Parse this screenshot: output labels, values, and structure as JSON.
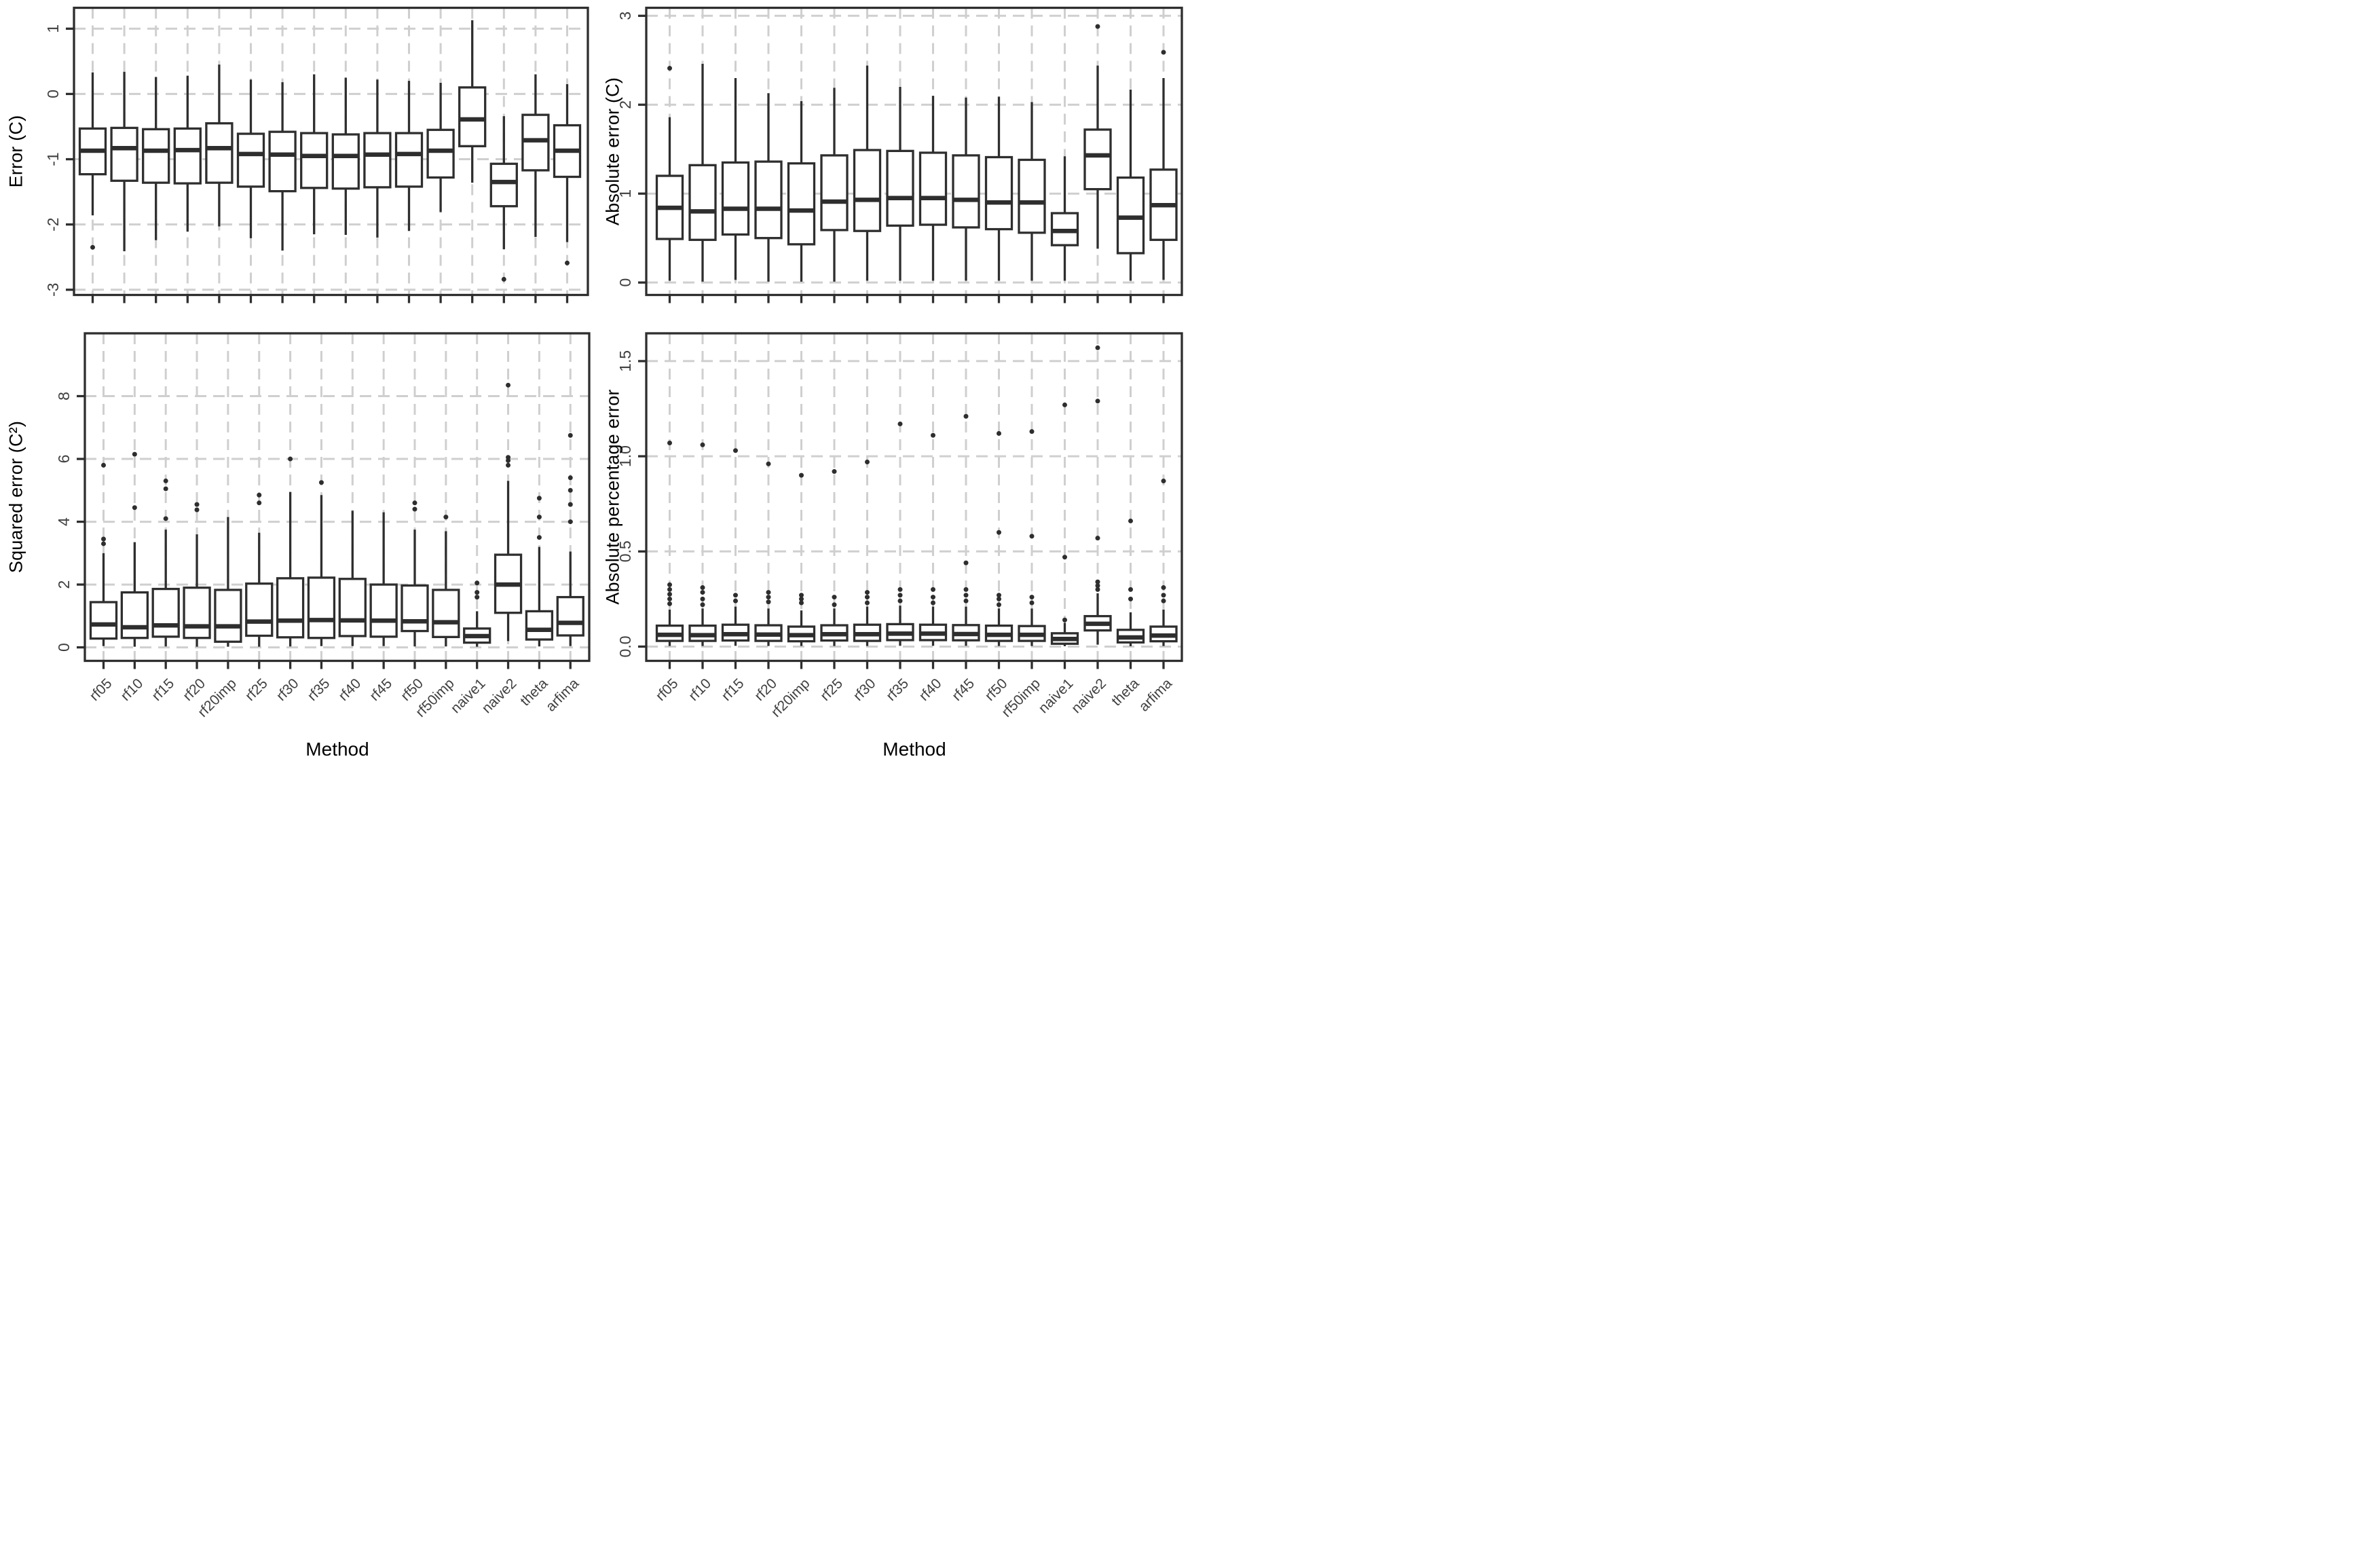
{
  "figure": {
    "background": "#ffffff",
    "panel_border_color": "#2e2e2e",
    "box_line_color": "#2e2e2e",
    "grid_color": "#cfcfcf",
    "tick_label_color": "#404040",
    "axis_title_color": "#000000"
  },
  "box_format": "each box: lo=lower whisker, q1, md=median, q3, hi=upper whisker, out=outlier values",
  "chart_data": [
    {
      "id": "error",
      "type": "boxplot",
      "title": "",
      "ylabel": "Error (C)",
      "xlabel": "",
      "show_x_labels": false,
      "grid": "dashed",
      "legend": "none",
      "ylim": [
        -3.08,
        1.32
      ],
      "yticks": [
        {
          "v": 1,
          "label": "1"
        },
        {
          "v": 0,
          "label": "0"
        },
        {
          "v": -1,
          "label": "-1"
        },
        {
          "v": -2,
          "label": "-2"
        },
        {
          "v": -3,
          "label": "-3"
        }
      ],
      "categories": [
        "rf05",
        "rf10",
        "rf15",
        "rf20",
        "rf20imp",
        "rf25",
        "rf30",
        "rf35",
        "rf40",
        "rf45",
        "rf50",
        "rf50imp",
        "naive1",
        "naive2",
        "theta",
        "arfima"
      ],
      "boxes": [
        {
          "m": "rf05",
          "lo": -1.86,
          "q1": -1.23,
          "md": -0.87,
          "q3": -0.53,
          "hi": 0.33,
          "out": [
            -2.35
          ]
        },
        {
          "m": "rf10",
          "lo": -2.41,
          "q1": -1.33,
          "md": -0.83,
          "q3": -0.52,
          "hi": 0.34,
          "out": []
        },
        {
          "m": "rf15",
          "lo": -2.24,
          "q1": -1.36,
          "md": -0.87,
          "q3": -0.54,
          "hi": 0.26,
          "out": []
        },
        {
          "m": "rf20",
          "lo": -2.11,
          "q1": -1.37,
          "md": -0.86,
          "q3": -0.53,
          "hi": 0.28,
          "out": []
        },
        {
          "m": "rf20imp",
          "lo": -2.03,
          "q1": -1.36,
          "md": -0.83,
          "q3": -0.45,
          "hi": 0.45,
          "out": []
        },
        {
          "m": "rf25",
          "lo": -2.21,
          "q1": -1.42,
          "md": -0.92,
          "q3": -0.61,
          "hi": 0.22,
          "out": []
        },
        {
          "m": "rf30",
          "lo": -2.4,
          "q1": -1.49,
          "md": -0.93,
          "q3": -0.58,
          "hi": 0.18,
          "out": []
        },
        {
          "m": "rf35",
          "lo": -2.15,
          "q1": -1.44,
          "md": -0.95,
          "q3": -0.6,
          "hi": 0.3,
          "out": []
        },
        {
          "m": "rf40",
          "lo": -2.16,
          "q1": -1.45,
          "md": -0.95,
          "q3": -0.62,
          "hi": 0.25,
          "out": []
        },
        {
          "m": "rf45",
          "lo": -2.2,
          "q1": -1.43,
          "md": -0.93,
          "q3": -0.6,
          "hi": 0.22,
          "out": []
        },
        {
          "m": "rf50",
          "lo": -2.1,
          "q1": -1.42,
          "md": -0.92,
          "q3": -0.6,
          "hi": 0.2,
          "out": []
        },
        {
          "m": "rf50imp",
          "lo": -1.81,
          "q1": -1.28,
          "md": -0.87,
          "q3": -0.55,
          "hi": 0.17,
          "out": []
        },
        {
          "m": "naive1",
          "lo": -1.36,
          "q1": -0.8,
          "md": -0.39,
          "q3": 0.1,
          "hi": 1.13,
          "out": []
        },
        {
          "m": "naive2",
          "lo": -2.38,
          "q1": -1.72,
          "md": -1.35,
          "q3": -1.07,
          "hi": -0.34,
          "out": [
            -2.84
          ]
        },
        {
          "m": "theta",
          "lo": -2.19,
          "q1": -1.17,
          "md": -0.71,
          "q3": -0.32,
          "hi": 0.3,
          "out": []
        },
        {
          "m": "arfima",
          "lo": -2.27,
          "q1": -1.27,
          "md": -0.87,
          "q3": -0.48,
          "hi": 0.15,
          "out": [
            -2.59
          ]
        }
      ]
    },
    {
      "id": "absolute-error",
      "type": "boxplot",
      "title": "",
      "ylabel": "Absolute error (C)",
      "xlabel": "",
      "show_x_labels": false,
      "grid": "dashed",
      "legend": "none",
      "ylim": [
        -0.14,
        3.09
      ],
      "yticks": [
        {
          "v": 3,
          "label": "3"
        },
        {
          "v": 2,
          "label": "2"
        },
        {
          "v": 1,
          "label": "1"
        },
        {
          "v": 0,
          "label": "0"
        }
      ],
      "categories": [
        "rf05",
        "rf10",
        "rf15",
        "rf20",
        "rf20imp",
        "rf25",
        "rf30",
        "rf35",
        "rf40",
        "rf45",
        "rf50",
        "rf50imp",
        "naive1",
        "naive2",
        "theta",
        "arfima"
      ],
      "boxes": [
        {
          "m": "rf05",
          "lo": 0.02,
          "q1": 0.49,
          "md": 0.84,
          "q3": 1.2,
          "hi": 1.86,
          "out": [
            2.41
          ]
        },
        {
          "m": "rf10",
          "lo": 0.01,
          "q1": 0.48,
          "md": 0.8,
          "q3": 1.32,
          "hi": 2.46,
          "out": []
        },
        {
          "m": "rf15",
          "lo": 0.03,
          "q1": 0.54,
          "md": 0.83,
          "q3": 1.35,
          "hi": 2.3,
          "out": []
        },
        {
          "m": "rf20",
          "lo": 0.01,
          "q1": 0.5,
          "md": 0.83,
          "q3": 1.36,
          "hi": 2.13,
          "out": []
        },
        {
          "m": "rf20imp",
          "lo": 0.01,
          "q1": 0.43,
          "md": 0.81,
          "q3": 1.34,
          "hi": 2.04,
          "out": []
        },
        {
          "m": "rf25",
          "lo": 0.01,
          "q1": 0.59,
          "md": 0.91,
          "q3": 1.43,
          "hi": 2.19,
          "out": []
        },
        {
          "m": "rf30",
          "lo": 0.02,
          "q1": 0.58,
          "md": 0.93,
          "q3": 1.49,
          "hi": 2.44,
          "out": []
        },
        {
          "m": "rf35",
          "lo": 0.02,
          "q1": 0.64,
          "md": 0.95,
          "q3": 1.48,
          "hi": 2.2,
          "out": []
        },
        {
          "m": "rf40",
          "lo": 0.02,
          "q1": 0.65,
          "md": 0.95,
          "q3": 1.46,
          "hi": 2.1,
          "out": []
        },
        {
          "m": "rf45",
          "lo": 0.02,
          "q1": 0.62,
          "md": 0.93,
          "q3": 1.43,
          "hi": 2.08,
          "out": []
        },
        {
          "m": "rf50",
          "lo": 0.02,
          "q1": 0.6,
          "md": 0.9,
          "q3": 1.41,
          "hi": 2.09,
          "out": []
        },
        {
          "m": "rf50imp",
          "lo": 0.02,
          "q1": 0.56,
          "md": 0.9,
          "q3": 1.38,
          "hi": 2.03,
          "out": []
        },
        {
          "m": "naive1",
          "lo": 0.02,
          "q1": 0.42,
          "md": 0.58,
          "q3": 0.78,
          "hi": 1.42,
          "out": []
        },
        {
          "m": "naive2",
          "lo": 0.38,
          "q1": 1.05,
          "md": 1.43,
          "q3": 1.72,
          "hi": 2.44,
          "out": [
            2.88
          ]
        },
        {
          "m": "theta",
          "lo": 0.02,
          "q1": 0.33,
          "md": 0.73,
          "q3": 1.18,
          "hi": 2.17,
          "out": []
        },
        {
          "m": "arfima",
          "lo": 0.03,
          "q1": 0.48,
          "md": 0.87,
          "q3": 1.27,
          "hi": 2.3,
          "out": [
            2.59
          ]
        }
      ]
    },
    {
      "id": "squared-error",
      "type": "boxplot",
      "title": "",
      "ylabel": "Squared error (C²)",
      "xlabel": "Method",
      "show_x_labels": true,
      "grid": "dashed",
      "legend": "none",
      "ylim": [
        -0.43,
        10.0
      ],
      "yticks": [
        {
          "v": 8,
          "label": "8"
        },
        {
          "v": 6,
          "label": "6"
        },
        {
          "v": 4,
          "label": "4"
        },
        {
          "v": 2,
          "label": "2"
        },
        {
          "v": 0,
          "label": "0"
        }
      ],
      "categories": [
        "rf05",
        "rf10",
        "rf15",
        "rf20",
        "rf20imp",
        "rf25",
        "rf30",
        "rf35",
        "rf40",
        "rf45",
        "rf50",
        "rf50imp",
        "naive1",
        "naive2",
        "theta",
        "arfima"
      ],
      "boxes": [
        {
          "m": "rf05",
          "lo": 0.04,
          "q1": 0.28,
          "md": 0.73,
          "q3": 1.44,
          "hi": 3.0,
          "out": [
            3.3,
            3.45,
            5.8
          ]
        },
        {
          "m": "rf10",
          "lo": 0.02,
          "q1": 0.3,
          "md": 0.64,
          "q3": 1.75,
          "hi": 3.35,
          "out": [
            4.45,
            6.15
          ]
        },
        {
          "m": "rf15",
          "lo": 0.03,
          "q1": 0.34,
          "md": 0.7,
          "q3": 1.86,
          "hi": 3.75,
          "out": [
            4.1,
            5.05,
            5.3
          ]
        },
        {
          "m": "rf20",
          "lo": 0.02,
          "q1": 0.3,
          "md": 0.67,
          "q3": 1.9,
          "hi": 3.6,
          "out": [
            4.38,
            4.55
          ]
        },
        {
          "m": "rf20imp",
          "lo": 0.02,
          "q1": 0.18,
          "md": 0.67,
          "q3": 1.83,
          "hi": 4.15,
          "out": []
        },
        {
          "m": "rf25",
          "lo": 0.02,
          "q1": 0.37,
          "md": 0.82,
          "q3": 2.03,
          "hi": 3.65,
          "out": [
            4.6,
            4.85
          ]
        },
        {
          "m": "rf30",
          "lo": 0.03,
          "q1": 0.32,
          "md": 0.85,
          "q3": 2.2,
          "hi": 4.95,
          "out": [
            6.0
          ]
        },
        {
          "m": "rf35",
          "lo": 0.04,
          "q1": 0.3,
          "md": 0.87,
          "q3": 2.22,
          "hi": 4.85,
          "out": [
            5.25
          ]
        },
        {
          "m": "rf40",
          "lo": 0.04,
          "q1": 0.36,
          "md": 0.86,
          "q3": 2.18,
          "hi": 4.35,
          "out": []
        },
        {
          "m": "rf45",
          "lo": 0.04,
          "q1": 0.34,
          "md": 0.85,
          "q3": 2.0,
          "hi": 4.3,
          "out": []
        },
        {
          "m": "rf50",
          "lo": 0.03,
          "q1": 0.52,
          "md": 0.83,
          "q3": 1.97,
          "hi": 3.75,
          "out": [
            4.4,
            4.6
          ]
        },
        {
          "m": "rf50imp",
          "lo": 0.03,
          "q1": 0.33,
          "md": 0.8,
          "q3": 1.83,
          "hi": 3.7,
          "out": [
            4.15
          ]
        },
        {
          "m": "naive1",
          "lo": 0.02,
          "q1": 0.15,
          "md": 0.36,
          "q3": 0.6,
          "hi": 1.15,
          "out": [
            1.6,
            1.75,
            2.05
          ]
        },
        {
          "m": "naive2",
          "lo": 0.2,
          "q1": 1.1,
          "md": 2.0,
          "q3": 2.95,
          "hi": 5.3,
          "out": [
            5.8,
            5.95,
            6.05,
            8.35
          ]
        },
        {
          "m": "theta",
          "lo": 0.03,
          "q1": 0.25,
          "md": 0.56,
          "q3": 1.15,
          "hi": 3.2,
          "out": [
            3.5,
            4.15,
            4.75
          ]
        },
        {
          "m": "arfima",
          "lo": 0.04,
          "q1": 0.38,
          "md": 0.78,
          "q3": 1.6,
          "hi": 3.05,
          "out": [
            4.0,
            4.55,
            5.0,
            5.4,
            6.75
          ]
        }
      ]
    },
    {
      "id": "absolute-percentage-error",
      "type": "boxplot",
      "title": "",
      "ylabel": "Absolute percentage error",
      "xlabel": "Method",
      "show_x_labels": true,
      "grid": "dashed",
      "legend": "none",
      "ylim": [
        -0.075,
        1.646
      ],
      "yticks": [
        {
          "v": 1.5,
          "label": "1.5"
        },
        {
          "v": 1.0,
          "label": "1.0"
        },
        {
          "v": 0.5,
          "label": "0.5"
        },
        {
          "v": 0.0,
          "label": "0.0"
        }
      ],
      "categories": [
        "rf05",
        "rf10",
        "rf15",
        "rf20",
        "rf20imp",
        "rf25",
        "rf30",
        "rf35",
        "rf40",
        "rf45",
        "rf50",
        "rf50imp",
        "naive1",
        "naive2",
        "theta",
        "arfima"
      ],
      "boxes": [
        {
          "m": "rf05",
          "lo": 0.003,
          "q1": 0.03,
          "md": 0.062,
          "q3": 0.11,
          "hi": 0.195,
          "out": [
            0.225,
            0.25,
            0.275,
            0.3,
            0.325,
            1.07
          ]
        },
        {
          "m": "rf10",
          "lo": 0.003,
          "q1": 0.03,
          "md": 0.06,
          "q3": 0.11,
          "hi": 0.2,
          "out": [
            0.22,
            0.25,
            0.285,
            0.31,
            1.06
          ]
        },
        {
          "m": "rf15",
          "lo": 0.004,
          "q1": 0.032,
          "md": 0.065,
          "q3": 0.115,
          "hi": 0.21,
          "out": [
            0.24,
            0.27,
            1.03
          ]
        },
        {
          "m": "rf20",
          "lo": 0.003,
          "q1": 0.03,
          "md": 0.063,
          "q3": 0.112,
          "hi": 0.2,
          "out": [
            0.235,
            0.26,
            0.285,
            0.96
          ]
        },
        {
          "m": "rf20imp",
          "lo": 0.003,
          "q1": 0.028,
          "md": 0.06,
          "q3": 0.105,
          "hi": 0.19,
          "out": [
            0.23,
            0.25,
            0.27,
            0.9
          ]
        },
        {
          "m": "rf25",
          "lo": 0.003,
          "q1": 0.032,
          "md": 0.065,
          "q3": 0.112,
          "hi": 0.2,
          "out": [
            0.22,
            0.26,
            0.92
          ]
        },
        {
          "m": "rf30",
          "lo": 0.003,
          "q1": 0.03,
          "md": 0.065,
          "q3": 0.115,
          "hi": 0.21,
          "out": [
            0.23,
            0.26,
            0.285,
            0.97
          ]
        },
        {
          "m": "rf35",
          "lo": 0.004,
          "q1": 0.034,
          "md": 0.068,
          "q3": 0.118,
          "hi": 0.215,
          "out": [
            0.24,
            0.27,
            0.3,
            1.17
          ]
        },
        {
          "m": "rf40",
          "lo": 0.004,
          "q1": 0.034,
          "md": 0.068,
          "q3": 0.115,
          "hi": 0.21,
          "out": [
            0.23,
            0.26,
            0.3,
            1.11
          ]
        },
        {
          "m": "rf45",
          "lo": 0.004,
          "q1": 0.033,
          "md": 0.066,
          "q3": 0.113,
          "hi": 0.21,
          "out": [
            0.24,
            0.27,
            0.3,
            0.44,
            1.21
          ]
        },
        {
          "m": "rf50",
          "lo": 0.003,
          "q1": 0.03,
          "md": 0.062,
          "q3": 0.11,
          "hi": 0.2,
          "out": [
            0.22,
            0.25,
            0.27,
            0.6,
            1.12
          ]
        },
        {
          "m": "rf50imp",
          "lo": 0.003,
          "q1": 0.03,
          "md": 0.062,
          "q3": 0.108,
          "hi": 0.2,
          "out": [
            0.23,
            0.26,
            0.58,
            1.13
          ]
        },
        {
          "m": "naive1",
          "lo": 0.002,
          "q1": 0.015,
          "md": 0.04,
          "q3": 0.07,
          "hi": 0.125,
          "out": [
            0.14,
            0.47,
            1.27
          ]
        },
        {
          "m": "naive2",
          "lo": 0.01,
          "q1": 0.085,
          "md": 0.12,
          "q3": 0.16,
          "hi": 0.28,
          "out": [
            0.3,
            0.32,
            0.34,
            0.57,
            1.29,
            1.57
          ]
        },
        {
          "m": "theta",
          "lo": 0.002,
          "q1": 0.022,
          "md": 0.048,
          "q3": 0.088,
          "hi": 0.18,
          "out": [
            0.25,
            0.3,
            0.66
          ]
        },
        {
          "m": "arfima",
          "lo": 0.003,
          "q1": 0.028,
          "md": 0.058,
          "q3": 0.105,
          "hi": 0.195,
          "out": [
            0.24,
            0.27,
            0.31,
            0.87
          ]
        }
      ]
    }
  ]
}
